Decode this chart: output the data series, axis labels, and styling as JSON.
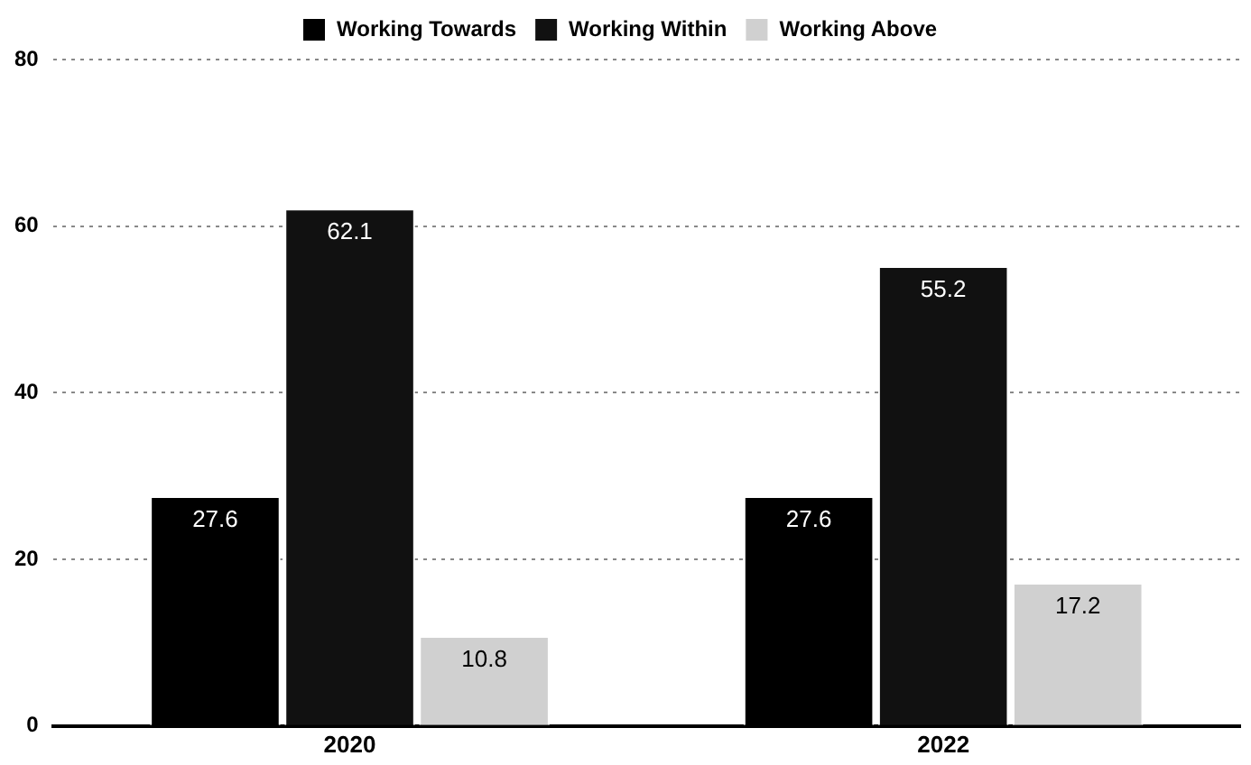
{
  "chart_data": {
    "type": "bar",
    "categories": [
      "2020",
      "2022"
    ],
    "series": [
      {
        "name": "Working Towards",
        "color": "#000000",
        "values": [
          27.6,
          27.6
        ]
      },
      {
        "name": "Working Within",
        "color": "#111111",
        "values": [
          62.1,
          55.2
        ]
      },
      {
        "name": "Working Above",
        "color": "#d0d0d0",
        "values": [
          10.8,
          17.2
        ]
      }
    ],
    "ylim": [
      0,
      80
    ],
    "yticks": [
      0,
      20,
      40,
      60,
      80
    ],
    "grid": "y",
    "legend": "top",
    "data_labels": true
  }
}
